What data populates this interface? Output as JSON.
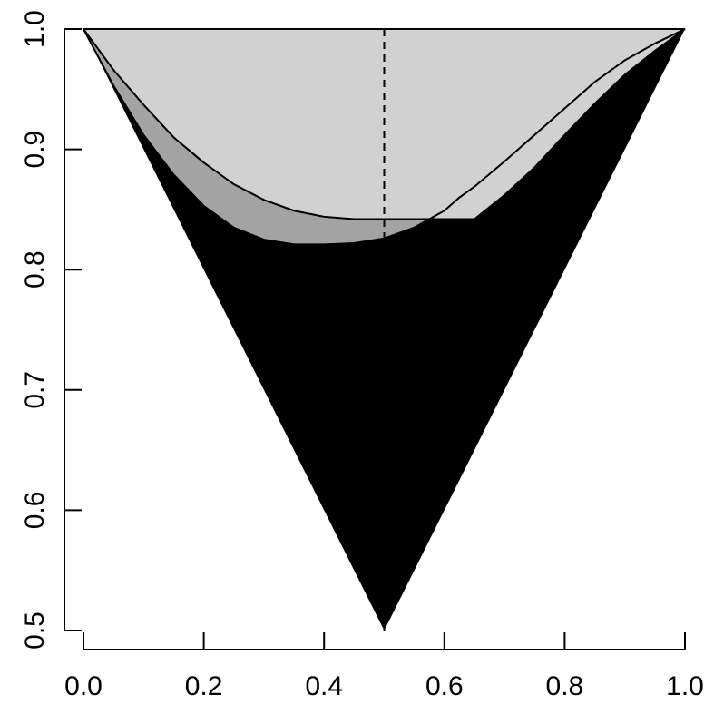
{
  "chart_data": {
    "type": "area",
    "title": "",
    "xlabel": "",
    "ylabel": "",
    "xlim": [
      0,
      1
    ],
    "ylim": [
      0.5,
      1
    ],
    "grid": false,
    "x_ticks": [
      0.0,
      0.2,
      0.4,
      0.6,
      0.8,
      1.0
    ],
    "x_tick_labels": [
      "0.0",
      "0.2",
      "0.4",
      "0.6",
      "0.8",
      "1.0"
    ],
    "y_ticks": [
      0.5,
      0.6,
      0.7,
      0.8,
      0.9,
      1.0
    ],
    "y_tick_labels": [
      "0.5",
      "0.6",
      "0.7",
      "0.8",
      "0.9",
      "1.0"
    ],
    "x": [
      0.0,
      0.05,
      0.1,
      0.15,
      0.2,
      0.25,
      0.3,
      0.35,
      0.4,
      0.45,
      0.5,
      0.55,
      0.6,
      0.625,
      0.65,
      0.7,
      0.75,
      0.8,
      0.85,
      0.9,
      0.95,
      1.0
    ],
    "series": [
      {
        "fill": "#000000",
        "values": [
          1.0,
          0.95,
          0.9,
          0.85,
          0.8,
          0.75,
          0.7,
          0.65,
          0.6,
          0.55,
          0.5,
          0.55,
          0.6,
          0.625,
          0.65,
          0.7,
          0.75,
          0.8,
          0.85,
          0.9,
          0.95,
          1.0
        ]
      },
      {
        "fill": "#a3a3a3",
        "stroke": "#000000",
        "values": [
          1.0,
          0.953,
          0.912,
          0.879,
          0.853,
          0.835,
          0.825,
          0.821,
          0.821,
          0.822,
          0.826,
          0.835,
          0.849,
          0.86,
          0.869,
          0.89,
          0.912,
          0.934,
          0.956,
          0.974,
          0.988,
          1.0
        ]
      },
      {
        "fill": "#d1d1d1",
        "stroke": "#000000",
        "values": [
          1.0,
          0.966,
          0.937,
          0.91,
          0.889,
          0.871,
          0.858,
          0.849,
          0.844,
          0.842,
          0.842,
          0.842,
          0.842,
          0.842,
          0.842,
          0.862,
          0.885,
          0.912,
          0.938,
          0.962,
          0.982,
          1.0
        ]
      }
    ],
    "reference_lines": [
      {
        "orientation": "vertical",
        "x": 0.5,
        "style": "dashed",
        "color": "#000000"
      }
    ],
    "annotations": []
  }
}
